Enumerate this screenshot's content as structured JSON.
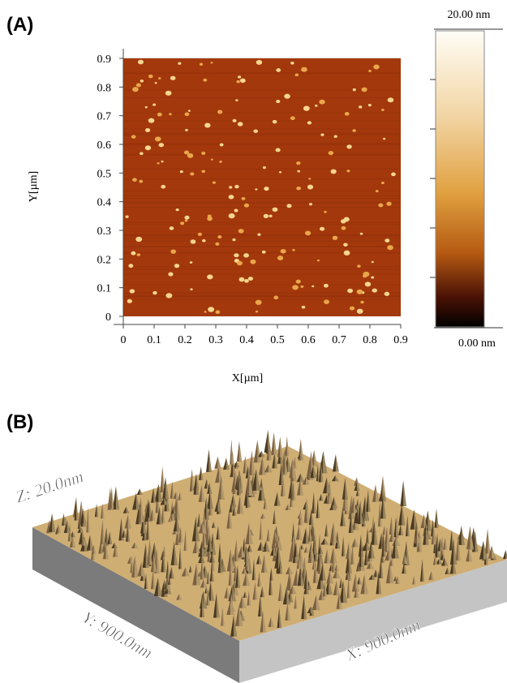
{
  "panel_a": {
    "label": "(A)",
    "x_axis_label": "X[µm]",
    "y_axis_label": "Y[µm]",
    "xlim": [
      0,
      0.9
    ],
    "ylim": [
      0,
      0.9
    ],
    "xticks": [
      0,
      0.1,
      0.2,
      0.3,
      0.4,
      0.5,
      0.6,
      0.7,
      0.8,
      0.9
    ],
    "yticks": [
      0,
      0.1,
      0.2,
      0.3,
      0.4,
      0.5,
      0.6,
      0.7,
      0.8,
      0.9
    ],
    "colorbar_top": "20.00 nm",
    "colorbar_bottom": "0.00 nm"
  },
  "panel_b": {
    "label": "(B)",
    "z_label": "Z: 20.0nm",
    "y_label": "Y: 900.0nm",
    "x_label": "X: 900.0nm"
  }
}
